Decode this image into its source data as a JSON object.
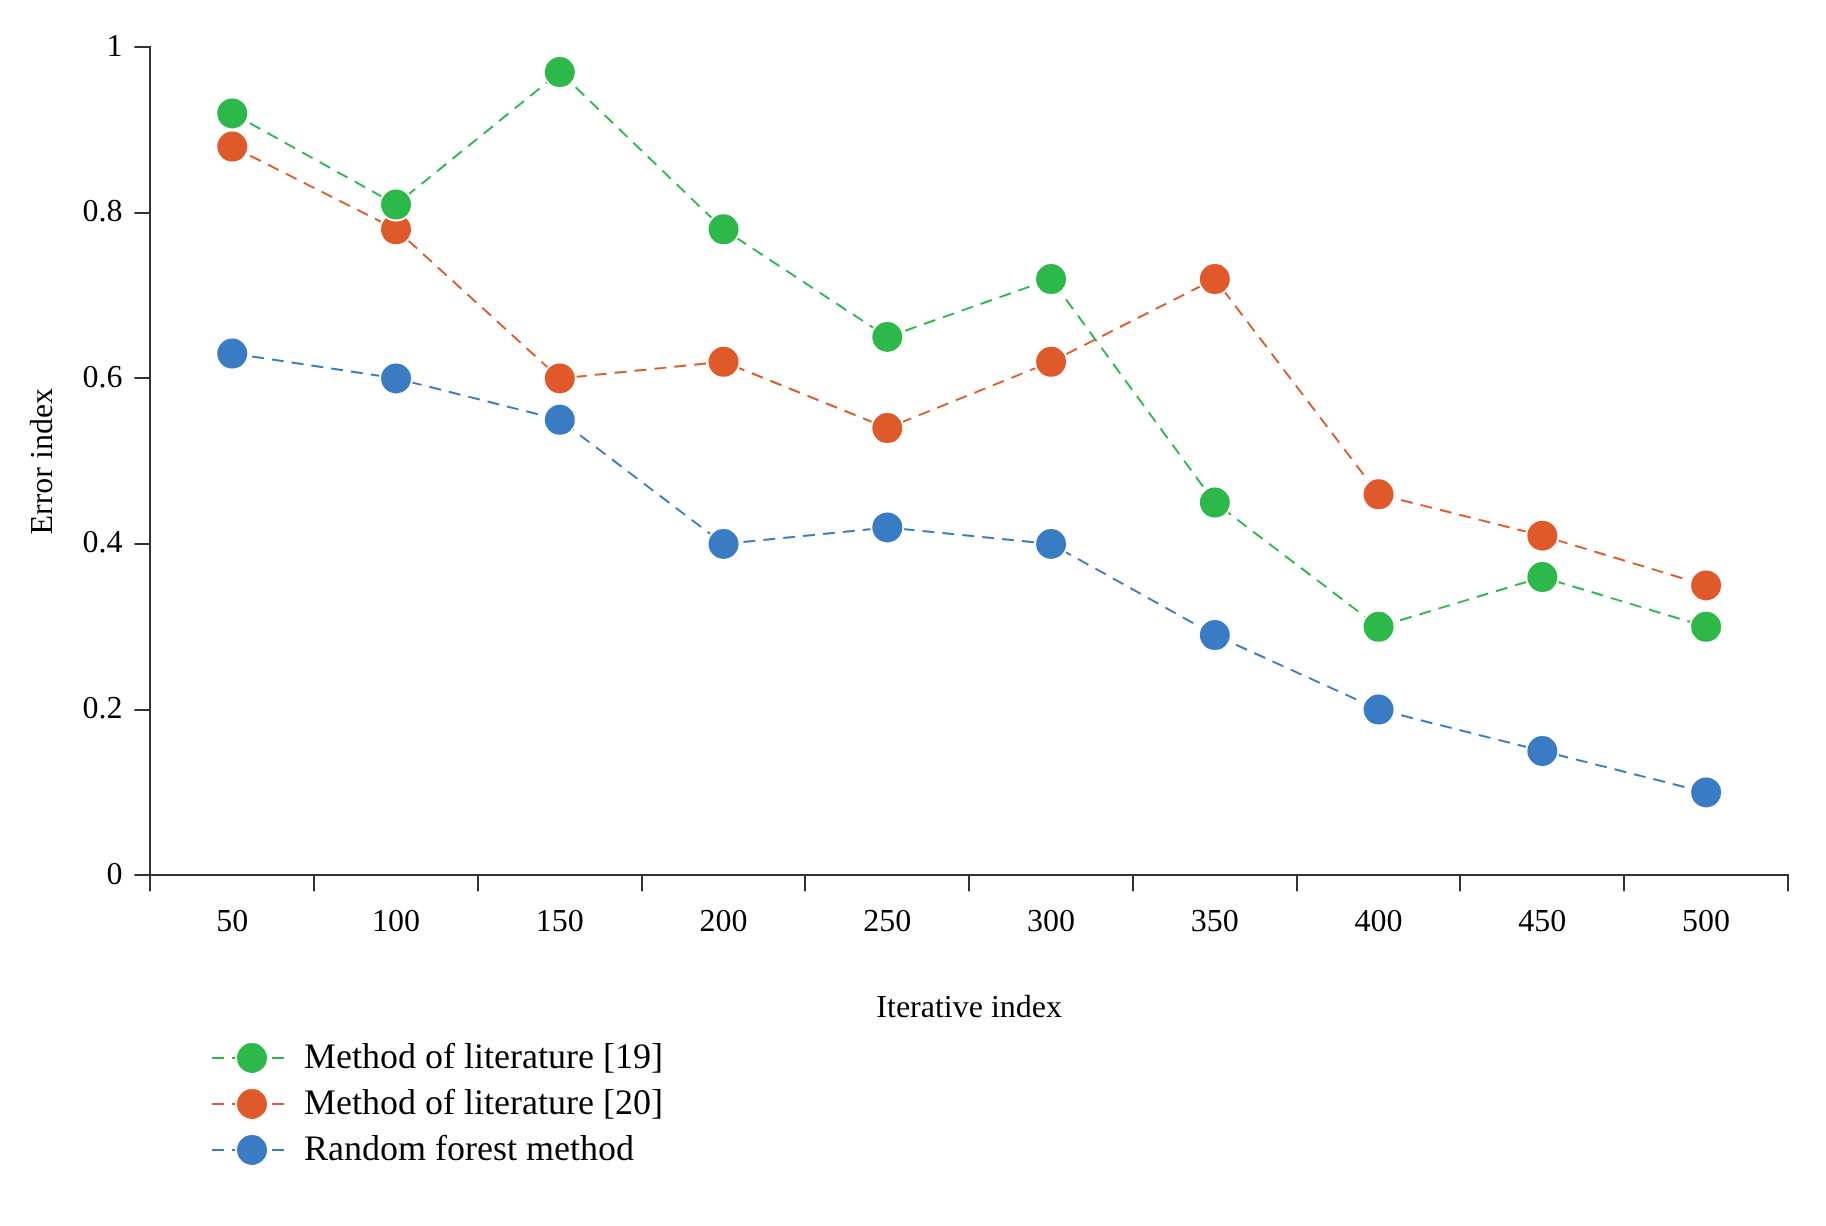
{
  "chart_data": {
    "type": "line",
    "xlabel": "Iterative index",
    "ylabel": "Error index",
    "categories": [
      "50",
      "100",
      "150",
      "200",
      "250",
      "300",
      "350",
      "400",
      "450",
      "500"
    ],
    "series": [
      {
        "name": "Method of literature [19]",
        "color": "#2db84a",
        "values": [
          0.92,
          0.81,
          0.97,
          0.78,
          0.65,
          0.72,
          0.45,
          0.3,
          0.36,
          0.3
        ]
      },
      {
        "name": "Method of literature [20]",
        "color": "#e0592a",
        "values": [
          0.88,
          0.78,
          0.6,
          0.62,
          0.54,
          0.62,
          0.72,
          0.46,
          0.41,
          0.35
        ]
      },
      {
        "name": "Random forest method",
        "color": "#3a7cc4",
        "values": [
          0.63,
          0.6,
          0.55,
          0.4,
          0.42,
          0.4,
          0.29,
          0.2,
          0.15,
          0.1
        ]
      }
    ],
    "ylim": [
      0,
      1
    ],
    "yticks": [
      0,
      0.2,
      0.4,
      0.6,
      0.8,
      1
    ],
    "grid": false,
    "legend": "bottom left",
    "marker": "circle",
    "line_style": "dashed"
  }
}
